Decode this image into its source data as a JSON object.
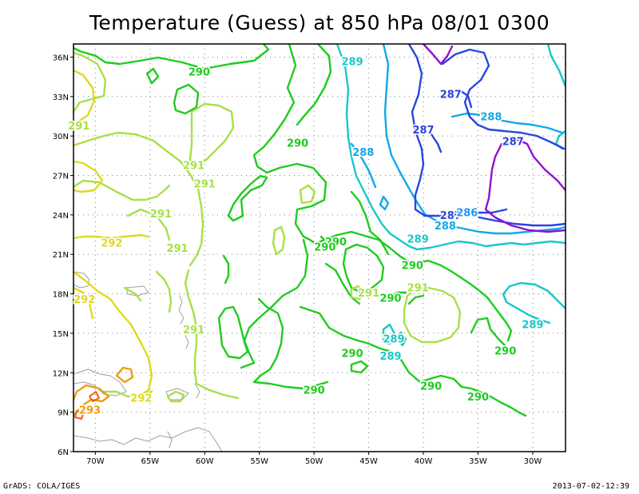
{
  "title": "Temperature (Guess) at 850 hPa 08/01 0300",
  "credit": "GrADS: COLA/IGES",
  "timestamp": "2013-07-02-12:39",
  "axes": {
    "lat_labels": [
      "36N",
      "33N",
      "30N",
      "27N",
      "24N",
      "21N",
      "18N",
      "15N",
      "12N",
      "9N",
      "6N"
    ],
    "lon_labels": [
      "70W",
      "65W",
      "60W",
      "55W",
      "50W",
      "45W",
      "40W",
      "35W",
      "30W"
    ]
  },
  "colors": {
    "c286": "#1a98ff",
    "c287": "#2846e0",
    "c288": "#12a8e8",
    "c289": "#18c8c8",
    "c290": "#1ecc1e",
    "c291": "#a8e048",
    "c292": "#e0d820",
    "c293": "#e8a010",
    "c294": "#f06010",
    "c285": "#9010d0",
    "coast": "#a0a0a0",
    "grid": "#808080"
  },
  "contour_labels": [
    {
      "text": "290",
      "lon": -60.5,
      "lat": 34.9,
      "level": 290
    },
    {
      "text": "289",
      "lon": -46.5,
      "lat": 35.7,
      "level": 289
    },
    {
      "text": "287",
      "lon": -37.5,
      "lat": 33.2,
      "level": 287
    },
    {
      "text": "288",
      "lon": -33.8,
      "lat": 31.5,
      "level": 288
    },
    {
      "text": "287",
      "lon": -40.0,
      "lat": 30.5,
      "level": 287
    },
    {
      "text": "287",
      "lon": -31.8,
      "lat": 29.6,
      "level": 287
    },
    {
      "text": "291",
      "lon": -71.5,
      "lat": 30.8,
      "level": 291
    },
    {
      "text": "290",
      "lon": -51.5,
      "lat": 29.5,
      "level": 290
    },
    {
      "text": "288",
      "lon": -45.5,
      "lat": 28.8,
      "level": 288
    },
    {
      "text": "291",
      "lon": -61.0,
      "lat": 27.8,
      "level": 291
    },
    {
      "text": "291",
      "lon": -60.0,
      "lat": 26.4,
      "level": 291
    },
    {
      "text": "291",
      "lon": -64.0,
      "lat": 24.1,
      "level": 291
    },
    {
      "text": "287",
      "lon": -37.5,
      "lat": 24.0,
      "level": 287
    },
    {
      "text": "286",
      "lon": -36.0,
      "lat": 24.2,
      "level": 286
    },
    {
      "text": "288",
      "lon": -38.0,
      "lat": 23.2,
      "level": 288
    },
    {
      "text": "289",
      "lon": -40.5,
      "lat": 22.2,
      "level": 289
    },
    {
      "text": "292",
      "lon": -68.5,
      "lat": 21.9,
      "level": 292
    },
    {
      "text": "291",
      "lon": -62.5,
      "lat": 21.5,
      "level": 291
    },
    {
      "text": "290",
      "lon": -48.0,
      "lat": 22.0,
      "level": 290
    },
    {
      "text": "290",
      "lon": -49.0,
      "lat": 21.6,
      "level": 290
    },
    {
      "text": "290",
      "lon": -41.0,
      "lat": 20.2,
      "level": 290
    },
    {
      "text": "291",
      "lon": -40.5,
      "lat": 18.5,
      "level": 291
    },
    {
      "text": "291",
      "lon": -45.0,
      "lat": 18.1,
      "level": 291
    },
    {
      "text": "290",
      "lon": -43.0,
      "lat": 17.7,
      "level": 290
    },
    {
      "text": "292",
      "lon": -71.0,
      "lat": 17.6,
      "level": 292
    },
    {
      "text": "291",
      "lon": -61.0,
      "lat": 15.3,
      "level": 291
    },
    {
      "text": "289",
      "lon": -30.0,
      "lat": 15.7,
      "level": 289
    },
    {
      "text": "289",
      "lon": -42.7,
      "lat": 14.6,
      "level": 289
    },
    {
      "text": "290",
      "lon": -46.5,
      "lat": 13.5,
      "level": 290
    },
    {
      "text": "290",
      "lon": -32.5,
      "lat": 13.7,
      "level": 290
    },
    {
      "text": "289",
      "lon": -43.0,
      "lat": 13.3,
      "level": 289
    },
    {
      "text": "290",
      "lon": -39.3,
      "lat": 11.0,
      "level": 290
    },
    {
      "text": "290",
      "lon": -50.0,
      "lat": 10.7,
      "level": 290
    },
    {
      "text": "290",
      "lon": -35.0,
      "lat": 10.2,
      "level": 290
    },
    {
      "text": "292",
      "lon": -65.8,
      "lat": 10.1,
      "level": 292
    },
    {
      "text": "293",
      "lon": -70.5,
      "lat": 9.2,
      "level": 293
    }
  ]
}
